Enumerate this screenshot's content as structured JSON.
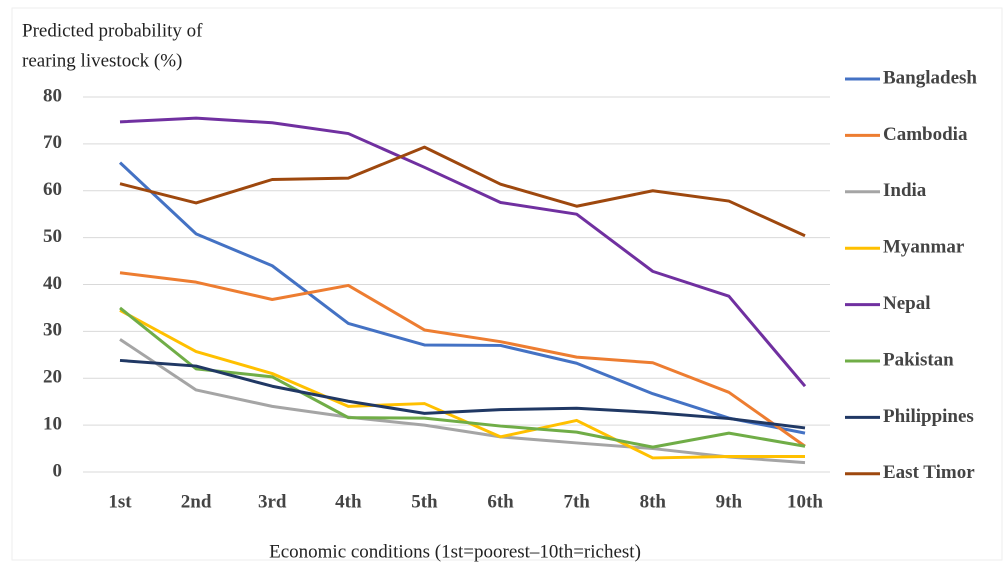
{
  "chart_data": {
    "type": "line",
    "ylabel": [
      "Predicted probability of",
      "rearing livestock (%)"
    ],
    "xlabel": "Economic conditions (1st=poorest–10th=richest)",
    "categories": [
      "1st",
      "2nd",
      "3rd",
      "4th",
      "5th",
      "6th",
      "7th",
      "8th",
      "9th",
      "10th"
    ],
    "ylim": [
      0,
      80
    ],
    "yticks": [
      0,
      10,
      20,
      30,
      40,
      50,
      60,
      70,
      80
    ],
    "grid": true,
    "legend": "right",
    "series": [
      {
        "name": "Bangladesh",
        "color": "#4472c4",
        "values": [
          66,
          50.8,
          44,
          31.7,
          27.1,
          27,
          23.2,
          16.7,
          11.5,
          8.3
        ]
      },
      {
        "name": "Cambodia",
        "color": "#ed7d31",
        "values": [
          42.5,
          40.5,
          36.8,
          39.8,
          30.3,
          27.8,
          24.5,
          23.3,
          17,
          5.5
        ]
      },
      {
        "name": "India",
        "color": "#a5a5a5",
        "values": [
          28.3,
          17.5,
          14,
          11.7,
          10,
          7.5,
          6.2,
          5,
          3.2,
          2
        ]
      },
      {
        "name": "Myanmar",
        "color": "#ffc000",
        "values": [
          34.5,
          25.7,
          21,
          14,
          14.6,
          7.5,
          11,
          3,
          3.3,
          3.3
        ]
      },
      {
        "name": "Nepal",
        "color": "#7030a0",
        "values": [
          74.7,
          75.5,
          74.5,
          72.2,
          65,
          57.5,
          55,
          42.8,
          37.5,
          18.3
        ]
      },
      {
        "name": "Pakistan",
        "color": "#70ad47",
        "values": [
          35,
          22,
          20.3,
          11.6,
          11.5,
          9.8,
          8.5,
          5.3,
          8.3,
          5.5
        ]
      },
      {
        "name": "Philippines",
        "color": "#203864",
        "values": [
          23.8,
          22.6,
          18.3,
          15.1,
          12.5,
          13.3,
          13.6,
          12.7,
          11.4,
          9.4
        ]
      },
      {
        "name": "East Timor",
        "color": "#9e480e",
        "values": [
          61.5,
          57.4,
          62.4,
          62.7,
          69.3,
          61.4,
          56.7,
          60,
          57.8,
          50.4
        ]
      }
    ]
  }
}
